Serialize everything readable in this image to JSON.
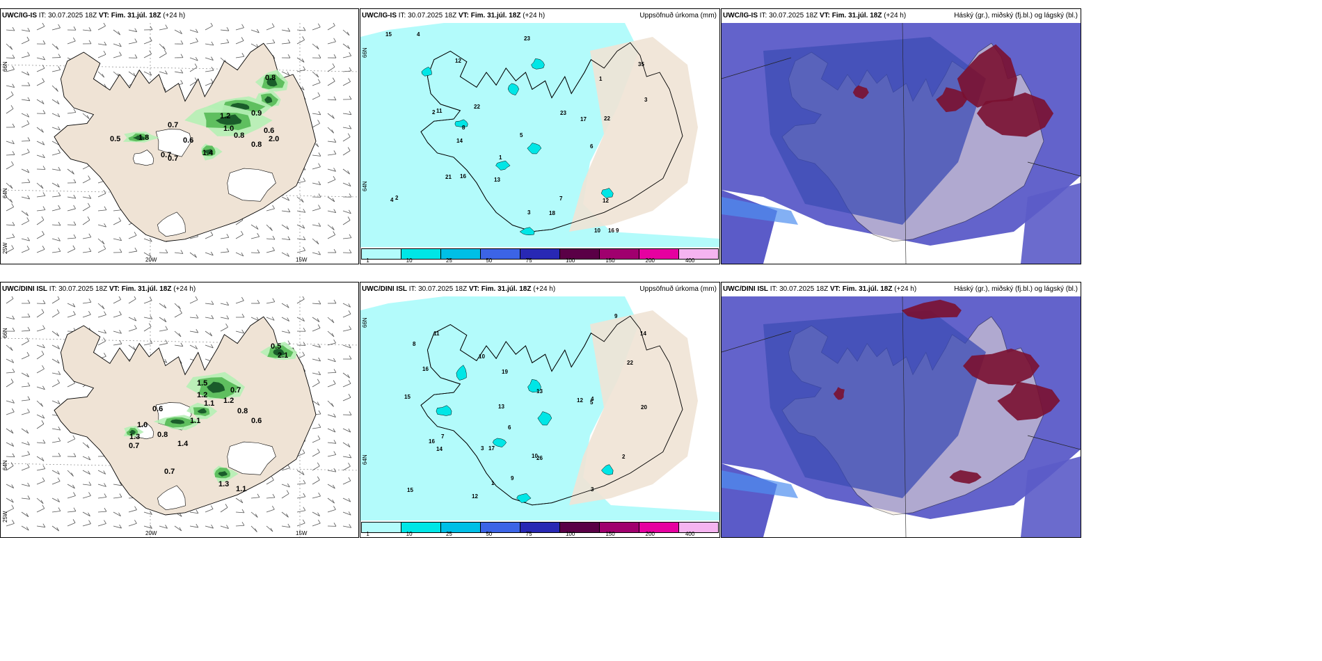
{
  "rows": [
    {
      "model_label": "UWC/IG-IS",
      "it_label": "IT: 30.07.2025 18Z",
      "vt_label": "VT: Fim. 31.júl. 18Z",
      "lead_label": "(+24 h)",
      "precip_title": "Uppsöfnuð úrkoma (mm)",
      "cloud_title": "Háský (gr.), miðský (fj.bl.) og lágský (bl.)",
      "wind_values": [
        "0.8",
        "1.2",
        "0.9",
        "1.0",
        "0.6",
        "0.8",
        "0.7",
        "1.8",
        "0.5",
        "0.6",
        "0.7",
        "0.7",
        "1.4",
        "0.8",
        "2.0"
      ],
      "precip_values": [
        "1",
        "2",
        "4",
        "6",
        "9",
        "12",
        "13",
        "14",
        "16",
        "17",
        "22",
        "23",
        "15",
        "10",
        "8",
        "7",
        "5",
        "3",
        "35",
        "22",
        "16",
        "11",
        "18",
        "21",
        "12",
        "23",
        "3",
        "2",
        "1",
        "4"
      ]
    },
    {
      "model_label": "UWC/DINI ISL",
      "it_label": "IT: 30.07.2025 18Z",
      "vt_label": "VT: Fim. 31.júl. 18Z",
      "lead_label": "(+24 h)",
      "precip_title": "Uppsöfnuð úrkoma (mm)",
      "cloud_title": "Háský (gr.), miðský (fj.bl.) og lágský (bl.)",
      "wind_values": [
        "0.5",
        "2.1",
        "1.5",
        "1.2",
        "0.7",
        "1.1",
        "1.2",
        "0.8",
        "0.6",
        "0.6",
        "1.0",
        "1.3",
        "0.7",
        "0.8",
        "1.1",
        "1.4",
        "0.7",
        "1.3",
        "1.1"
      ],
      "precip_values": [
        "12",
        "3",
        "4",
        "6",
        "9",
        "10",
        "13",
        "16",
        "17",
        "20",
        "14",
        "11",
        "12",
        "22",
        "15",
        "14",
        "26",
        "19",
        "15",
        "13",
        "10",
        "8",
        "7",
        "5",
        "3",
        "2",
        "1",
        "16",
        "9"
      ]
    }
  ],
  "axis_labels": {
    "lat_top": "66N",
    "lat_mid": "64N",
    "lon_left": "25W",
    "lon_20": "20W",
    "lon_15": "15W",
    "lat_p2": "66N",
    "lat_p2b": "64N"
  },
  "colorbar": {
    "ticks": [
      "1",
      "10",
      "25",
      "50",
      "75",
      "100",
      "150",
      "200",
      "400"
    ],
    "colors": [
      "#b3fbfb",
      "#00e6e6",
      "#00bfe6",
      "#3c64e6",
      "#2828b4",
      "#5a0046",
      "#a0006e",
      "#e600a0",
      "#f5b4f0"
    ]
  },
  "colors": {
    "land": "#efe3d5",
    "wind_green_light": "#b5f0b5",
    "wind_green_mid": "#5fbf5f",
    "wind_green_dark": "#1a5c2a",
    "precip_light": "#b3fbfb",
    "precip_mid": "#00e6e6",
    "precip_dark": "#00bfe6",
    "cloud_low": "#5b5bc8",
    "cloud_mid": "#3c4cb4",
    "cloud_high": "#7a1030",
    "cloud_edge": "#4f8fef"
  }
}
